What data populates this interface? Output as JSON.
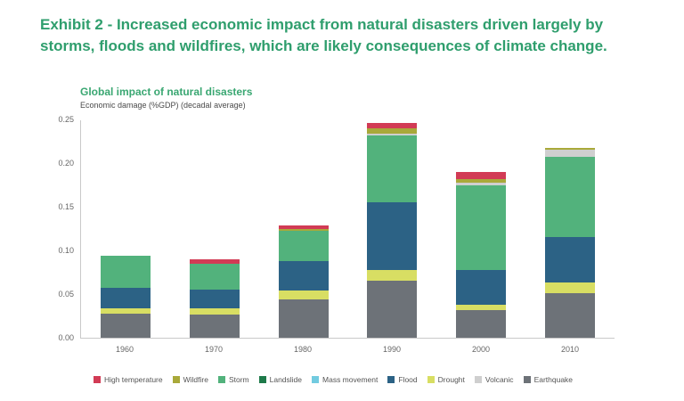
{
  "page": {
    "heading": "Exhibit 2 - Increased economic impact from natural disasters driven largely by storms, floods and wildfires, which are likely consequences of climate change."
  },
  "chart": {
    "title": "Global impact of natural disasters",
    "subtitle": "Economic damage (%GDP) (decadal average)"
  },
  "colors": {
    "heading_green": "#2f9e6d",
    "title_green": "#3aa772",
    "axis_gray": "#c9c9c9",
    "tick_text_gray": "#666666",
    "legend_text_gray": "#555555"
  },
  "chart_data": {
    "type": "bar",
    "variant": "stacked",
    "title": "Global impact of natural disasters",
    "subtitle": "Economic damage (%GDP) (decadal average)",
    "xlabel": "",
    "ylabel": "Economic damage (%GDP)",
    "categories": [
      "1960",
      "1970",
      "1980",
      "1990",
      "2000",
      "2010"
    ],
    "ylim": [
      0,
      0.25
    ],
    "yticks": [
      "0.00",
      "0.05",
      "0.10",
      "0.15",
      "0.20",
      "0.25"
    ],
    "grid": false,
    "legend_position": "bottom",
    "series": [
      {
        "name": "Earthquake",
        "color": "#6d7278",
        "values": [
          0.028,
          0.027,
          0.044,
          0.065,
          0.032,
          0.051
        ]
      },
      {
        "name": "Drought",
        "color": "#d8de63",
        "values": [
          0.006,
          0.007,
          0.01,
          0.013,
          0.006,
          0.012
        ]
      },
      {
        "name": "Flood",
        "color": "#2c6285",
        "values": [
          0.023,
          0.021,
          0.034,
          0.077,
          0.04,
          0.052
        ]
      },
      {
        "name": "Mass movement",
        "color": "#72cbe0",
        "values": [
          0,
          0,
          0,
          0,
          0,
          0
        ]
      },
      {
        "name": "Landslide",
        "color": "#1e7a4a",
        "values": [
          0,
          0,
          0,
          0,
          0,
          0
        ]
      },
      {
        "name": "Storm",
        "color": "#52b27c",
        "values": [
          0.037,
          0.03,
          0.034,
          0.077,
          0.097,
          0.092
        ]
      },
      {
        "name": "Volcanic",
        "color": "#cfcfcf",
        "values": [
          0,
          0,
          0,
          0.002,
          0.003,
          0.008
        ]
      },
      {
        "name": "Wildfire",
        "color": "#a9a93a",
        "values": [
          0,
          0,
          0.003,
          0.006,
          0.004,
          0.002
        ]
      },
      {
        "name": "High temperature",
        "color": "#d23b55",
        "values": [
          0,
          0.005,
          0.004,
          0.006,
          0.008,
          0
        ]
      }
    ],
    "legend": [
      "High temperature",
      "Wildfire",
      "Storm",
      "Landslide",
      "Mass movement",
      "Flood",
      "Drought",
      "Volcanic",
      "Earthquake"
    ]
  }
}
